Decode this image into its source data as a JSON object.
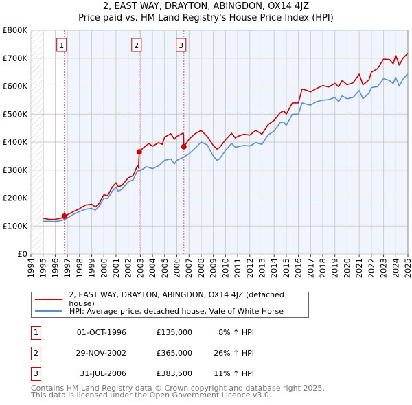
{
  "title_line1": "2, EAST WAY, DRAYTON, ABINGDON, OX14 4JZ",
  "title_line2": "Price paid vs. HM Land Registry's House Price Index (HPI)",
  "colors": {
    "property": "#cc0000",
    "hpi": "#5b8ed0",
    "shade": "#f0f4fc",
    "grid": "#cccccc"
  },
  "chart_data": {
    "type": "line",
    "title": "2, EAST WAY, DRAYTON, ABINGDON, OX14 4JZ — Price paid vs. HM Land Registry's House Price Index (HPI)",
    "xlim": [
      1994,
      2025
    ],
    "ylim": [
      0,
      800000
    ],
    "grid": true,
    "x_ticks": [
      "1994",
      "1995",
      "1996",
      "1997",
      "1998",
      "1999",
      "2000",
      "2001",
      "2002",
      "2003",
      "2004",
      "2005",
      "2006",
      "2007",
      "2008",
      "2009",
      "2010",
      "2011",
      "2012",
      "2013",
      "2014",
      "2015",
      "2016",
      "2017",
      "2018",
      "2019",
      "2020",
      "2021",
      "2022",
      "2023",
      "2024",
      "2025"
    ],
    "y_ticks": [
      {
        "v": 0,
        "label": "£0"
      },
      {
        "v": 100000,
        "label": "£100K"
      },
      {
        "v": 200000,
        "label": "£200K"
      },
      {
        "v": 300000,
        "label": "£300K"
      },
      {
        "v": 400000,
        "label": "£400K"
      },
      {
        "v": 500000,
        "label": "£500K"
      },
      {
        "v": 600000,
        "label": "£600K"
      },
      {
        "v": 700000,
        "label": "£700K"
      },
      {
        "v": 800000,
        "label": "£800K"
      }
    ],
    "series": [
      {
        "name": "2, EAST WAY, DRAYTON, ABINGDON, OX14 4JZ (detached house)",
        "x": [
          1995,
          1995.5,
          1996,
          1996.5,
          1996.75,
          1997,
          1997.5,
          1998,
          1998.5,
          1999,
          1999.3,
          1999.6,
          2000,
          2000.3,
          2000.7,
          2001,
          2001.2,
          2001.5,
          2002,
          2002.4,
          2002.75,
          2002.85,
          2002.91,
          2003.2,
          2003.7,
          2004,
          2004.5,
          2004.8,
          2005,
          2005.5,
          2005.8,
          2006,
          2006.5,
          2006.55,
          2006.58,
          2007,
          2007.5,
          2008,
          2008.5,
          2009,
          2009.3,
          2009.5,
          2010,
          2010.5,
          2010.8,
          2011,
          2011.5,
          2012,
          2012.5,
          2013,
          2013.5,
          2014,
          2014.5,
          2014.8,
          2015,
          2015.5,
          2016,
          2016.3,
          2016.7,
          2017,
          2017.5,
          2018,
          2018.5,
          2019,
          2019.3,
          2019.6,
          2020,
          2020.5,
          2021,
          2021.3,
          2021.8,
          2022,
          2022.5,
          2023,
          2023.5,
          2023.8,
          2024,
          2024.3,
          2024.6,
          2025
        ],
        "y": [
          128000,
          124000,
          124000,
          128000,
          135000,
          140000,
          152000,
          162000,
          175000,
          178000,
          168000,
          180000,
          212000,
          208000,
          240000,
          255000,
          240000,
          246000,
          272000,
          280000,
          315000,
          308000,
          365000,
          378000,
          395000,
          385000,
          398000,
          392000,
          418000,
          430000,
          410000,
          420000,
          432000,
          430000,
          383500,
          410000,
          430000,
          442000,
          420000,
          388000,
          375000,
          380000,
          408000,
          432000,
          415000,
          420000,
          428000,
          425000,
          442000,
          428000,
          462000,
          478000,
          505000,
          512000,
          500000,
          540000,
          540000,
          590000,
          585000,
          580000,
          592000,
          602000,
          597000,
          610000,
          598000,
          620000,
          605000,
          612000,
          643000,
          605000,
          622000,
          650000,
          662000,
          697000,
          695000,
          680000,
          710000,
          675000,
          700000,
          718000
        ]
      },
      {
        "name": "HPI: Average price, detached house, Vale of White Horse",
        "x": [
          1995,
          1995.5,
          1996,
          1996.5,
          1997,
          1997.5,
          1998,
          1998.5,
          1999,
          1999.3,
          1999.6,
          2000,
          2000.3,
          2000.7,
          2001,
          2001.2,
          2001.5,
          2002,
          2002.4,
          2002.75,
          2003,
          2003.5,
          2004,
          2004.5,
          2005,
          2005.5,
          2005.8,
          2006,
          2006.5,
          2007,
          2007.5,
          2008,
          2008.5,
          2009,
          2009.3,
          2009.5,
          2010,
          2010.5,
          2010.8,
          2011,
          2011.5,
          2012,
          2012.5,
          2013,
          2013.5,
          2014,
          2014.5,
          2014.8,
          2015,
          2015.5,
          2016,
          2016.3,
          2016.7,
          2017,
          2017.5,
          2018,
          2018.5,
          2019,
          2019.3,
          2019.6,
          2020,
          2020.5,
          2021,
          2021.3,
          2021.8,
          2022,
          2022.5,
          2023,
          2023.5,
          2023.8,
          2024,
          2024.3,
          2024.6,
          2025
        ],
        "y": [
          117000,
          117000,
          116000,
          119000,
          128000,
          142000,
          152000,
          160000,
          163000,
          157000,
          170000,
          200000,
          198000,
          225000,
          238000,
          224000,
          232000,
          258000,
          265000,
          297000,
          298000,
          312000,
          305000,
          315000,
          335000,
          340000,
          322000,
          335000,
          345000,
          358000,
          378000,
          400000,
          390000,
          350000,
          335000,
          340000,
          370000,
          395000,
          382000,
          383000,
          388000,
          386000,
          398000,
          392000,
          425000,
          440000,
          470000,
          472000,
          460000,
          500000,
          500000,
          540000,
          535000,
          532000,
          545000,
          550000,
          552000,
          560000,
          545000,
          565000,
          555000,
          560000,
          585000,
          555000,
          575000,
          595000,
          598000,
          627000,
          620000,
          608000,
          632000,
          600000,
          625000,
          645000
        ]
      }
    ],
    "sales": [
      {
        "id": "1",
        "x": 1996.75,
        "price": 135000
      },
      {
        "id": "2",
        "x": 2002.91,
        "price": 365000
      },
      {
        "id": "3",
        "x": 2006.58,
        "price": 383500
      }
    ]
  },
  "legend": {
    "property": "2, EAST WAY, DRAYTON, ABINGDON, OX14 4JZ (detached house)",
    "hpi": "HPI: Average price, detached house, Vale of White Horse"
  },
  "sales_table": [
    {
      "id": "1",
      "date": "01-OCT-1996",
      "price": "£135,000",
      "diff": "8% ↑ HPI"
    },
    {
      "id": "2",
      "date": "29-NOV-2002",
      "price": "£365,000",
      "diff": "26% ↑ HPI"
    },
    {
      "id": "3",
      "date": "31-JUL-2006",
      "price": "£383,500",
      "diff": "11% ↑ HPI"
    }
  ],
  "footer": {
    "line1": "Contains HM Land Registry data © Crown copyright and database right 2025.",
    "line2": "This data is licensed under the Open Government Licence v3.0."
  }
}
